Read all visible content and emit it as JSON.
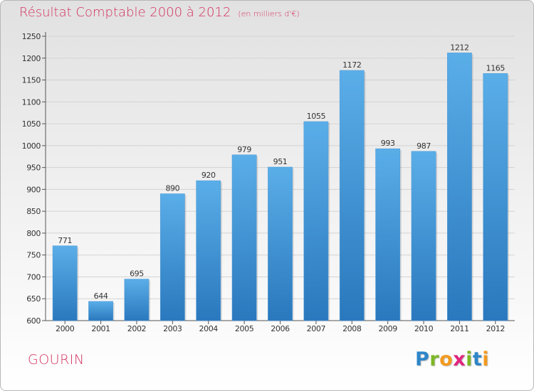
{
  "header": {
    "title": "Résultat Comptable 2000 à 2012",
    "subtitle": "(en milliers d'€)"
  },
  "footer": {
    "commune": "GOURIN",
    "logo_letters": [
      "P",
      "r",
      "o",
      "x",
      "i",
      "t",
      "i"
    ],
    "logo_colors": [
      "#2e86c8",
      "#7cb826",
      "#f39a1e",
      "#e0257f",
      "#7cb826",
      "#2e86c8",
      "#f39a1e"
    ]
  },
  "chart_data": {
    "type": "bar",
    "title": "Résultat Comptable 2000 à 2012",
    "subtitle": "(en milliers d'€)",
    "categories": [
      "2000",
      "2001",
      "2002",
      "2003",
      "2004",
      "2005",
      "2006",
      "2007",
      "2008",
      "2009",
      "2010",
      "2011",
      "2012"
    ],
    "values": [
      771,
      644,
      695,
      890,
      920,
      979,
      951,
      1055,
      1172,
      993,
      987,
      1212,
      1165
    ],
    "ylim": [
      600,
      1250
    ],
    "yticks": [
      600,
      650,
      700,
      750,
      800,
      850,
      900,
      950,
      1000,
      1050,
      1100,
      1150,
      1200,
      1250
    ],
    "grid": true,
    "bar_color_top": "#5aaee8",
    "bar_color_bottom": "#2a78bd"
  }
}
